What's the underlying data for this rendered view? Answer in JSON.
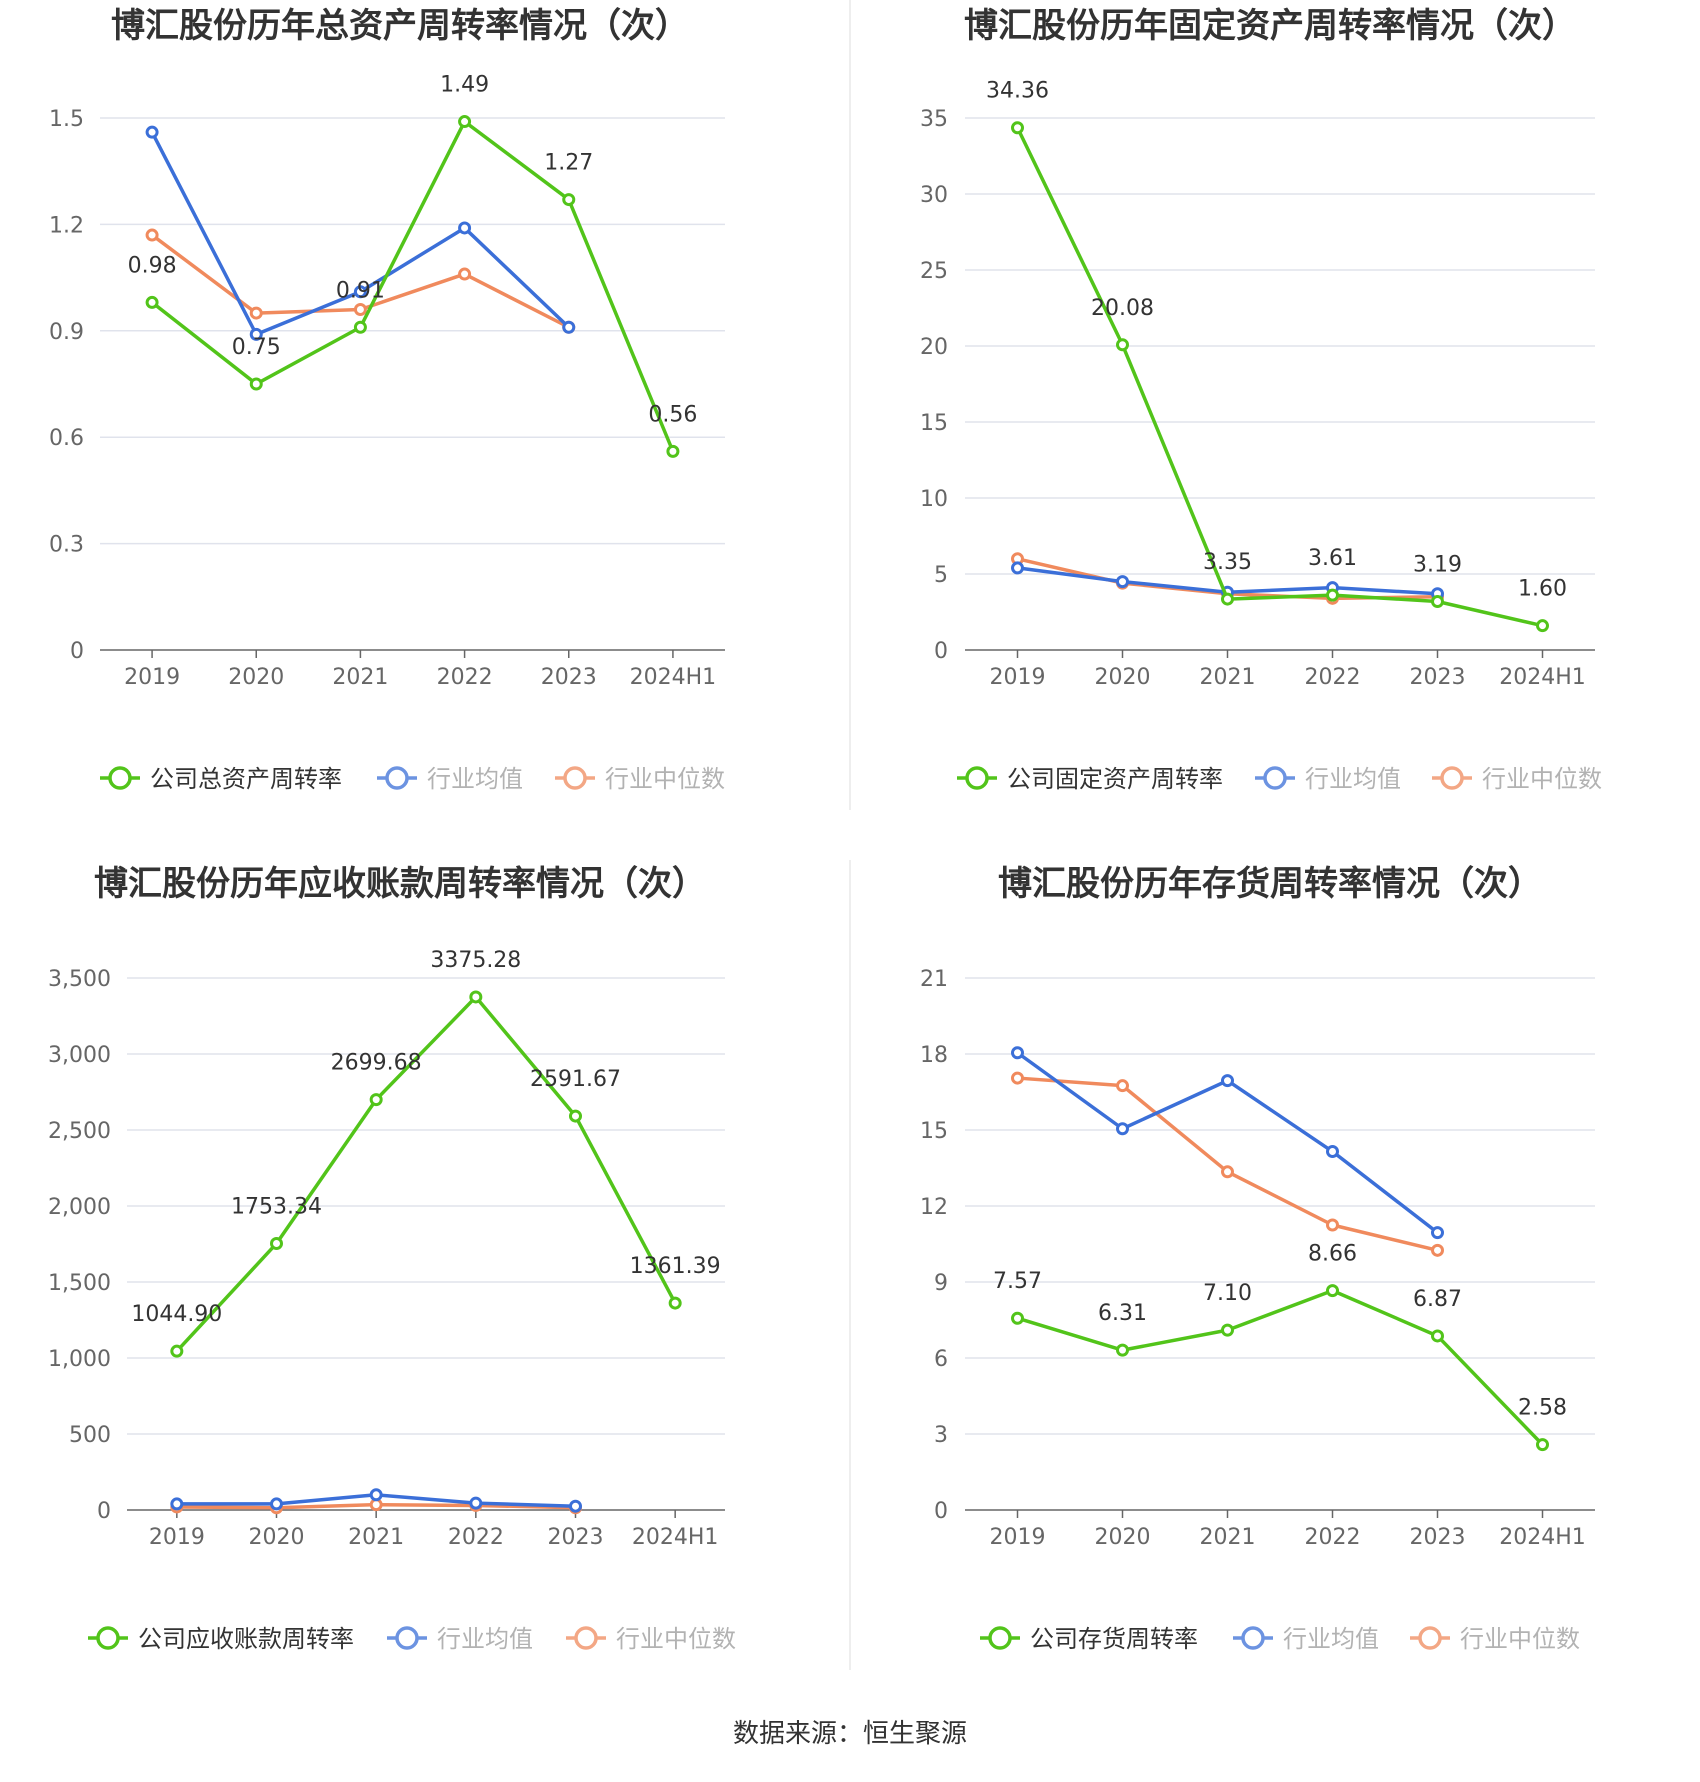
{
  "source": "数据来源：恒生聚源",
  "colors": {
    "company": "#52c41a",
    "avg": "#3b6fd8",
    "median": "#f08a5d",
    "grid": "#e0e3ec",
    "axis": "#666666"
  },
  "chart_data": [
    {
      "type": "line",
      "title": "博汇股份历年总资产周转率情况（次）",
      "categories": [
        "2019",
        "2020",
        "2021",
        "2022",
        "2023",
        "2024H1"
      ],
      "yticks": [
        "0",
        "0.3",
        "0.6",
        "0.9",
        "1.2",
        "1.5"
      ],
      "ylim": [
        0,
        1.5
      ],
      "series": [
        {
          "name": "公司总资产周转率",
          "values": [
            0.98,
            0.75,
            0.91,
            1.49,
            1.27,
            0.56
          ],
          "labels": [
            "0.98",
            "0.75",
            "0.91",
            "1.49",
            "1.27",
            "0.56"
          ]
        },
        {
          "name": "行业均值",
          "values": [
            1.46,
            0.89,
            1.01,
            1.19,
            0.91,
            null
          ]
        },
        {
          "name": "行业中位数",
          "values": [
            1.17,
            0.95,
            0.96,
            1.06,
            0.91,
            null
          ]
        }
      ]
    },
    {
      "type": "line",
      "title": "博汇股份历年固定资产周转率情况（次）",
      "categories": [
        "2019",
        "2020",
        "2021",
        "2022",
        "2023",
        "2024H1"
      ],
      "yticks": [
        "0",
        "5",
        "10",
        "15",
        "20",
        "25",
        "30",
        "35"
      ],
      "ylim": [
        0,
        35
      ],
      "series": [
        {
          "name": "公司固定资产周转率",
          "values": [
            34.36,
            20.08,
            3.35,
            3.61,
            3.19,
            1.6
          ],
          "labels": [
            "34.36",
            "20.08",
            "3.35",
            "3.61",
            "3.19",
            "1.60"
          ]
        },
        {
          "name": "行业均值",
          "values": [
            5.4,
            4.5,
            3.8,
            4.1,
            3.7,
            null
          ]
        },
        {
          "name": "行业中位数",
          "values": [
            6.0,
            4.4,
            3.7,
            3.4,
            3.5,
            null
          ]
        }
      ]
    },
    {
      "type": "line",
      "title": "博汇股份历年应收账款周转率情况（次）",
      "categories": [
        "2019",
        "2020",
        "2021",
        "2022",
        "2023",
        "2024H1"
      ],
      "yticks": [
        "0",
        "500",
        "1,000",
        "1,500",
        "2,000",
        "2,500",
        "3,000",
        "3,500"
      ],
      "ylim": [
        0,
        3500
      ],
      "series": [
        {
          "name": "公司应收账款周转率",
          "values": [
            1044.9,
            1753.34,
            2699.68,
            3375.28,
            2591.67,
            1361.39
          ],
          "labels": [
            "1044.90",
            "1753.34",
            "2699.68",
            "3375.28",
            "2591.67",
            "1361.39"
          ]
        },
        {
          "name": "行业均值",
          "values": [
            40,
            40,
            100,
            45,
            25,
            null
          ]
        },
        {
          "name": "行业中位数",
          "values": [
            20,
            15,
            35,
            30,
            15,
            null
          ]
        }
      ]
    },
    {
      "type": "line",
      "title": "博汇股份历年存货周转率情况（次）",
      "categories": [
        "2019",
        "2020",
        "2021",
        "2022",
        "2023",
        "2024H1"
      ],
      "yticks": [
        "0",
        "3",
        "6",
        "9",
        "12",
        "15",
        "18",
        "21"
      ],
      "ylim": [
        0,
        21
      ],
      "series": [
        {
          "name": "公司存货周转率",
          "values": [
            7.57,
            6.31,
            7.1,
            8.66,
            6.87,
            2.58
          ],
          "labels": [
            "7.57",
            "6.31",
            "7.10",
            "8.66",
            "6.87",
            "2.58"
          ]
        },
        {
          "name": "行业均值",
          "values": [
            18.05,
            15.05,
            16.95,
            14.15,
            10.95,
            null
          ]
        },
        {
          "name": "行业中位数",
          "values": [
            17.05,
            16.75,
            13.35,
            11.25,
            10.25,
            null
          ]
        }
      ]
    }
  ]
}
